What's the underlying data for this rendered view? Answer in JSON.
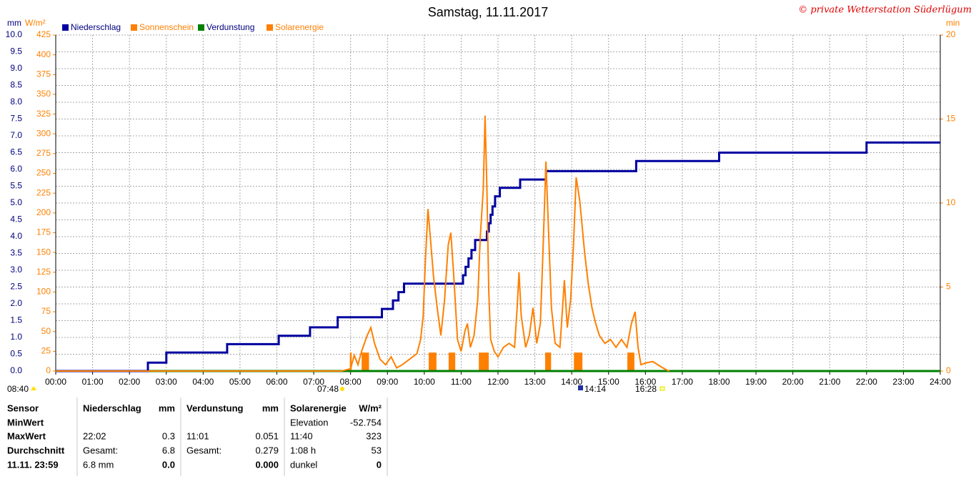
{
  "chart_data": {
    "type": "line",
    "title": "Samstag, 11.11.2017",
    "copyright": "© private Wetterstation Süderlügum",
    "y_label": "mm",
    "y2_label": "W/m²",
    "y3_label": "min",
    "xlim": [
      0,
      24
    ],
    "xticks": [
      {
        "value": 0,
        "label": "00:00"
      },
      {
        "value": 1,
        "label": "01:00"
      },
      {
        "value": 2,
        "label": "02:00"
      },
      {
        "value": 3,
        "label": "03:00"
      },
      {
        "value": 4,
        "label": "04:00"
      },
      {
        "value": 5,
        "label": "05:00"
      },
      {
        "value": 6,
        "label": "06:00"
      },
      {
        "value": 7,
        "label": "07:00"
      },
      {
        "value": 8,
        "label": "08:00"
      },
      {
        "value": 9,
        "label": "09:00"
      },
      {
        "value": 10,
        "label": "10:00"
      },
      {
        "value": 11,
        "label": "11:00"
      },
      {
        "value": 12,
        "label": "12:00"
      },
      {
        "value": 13,
        "label": "13:00"
      },
      {
        "value": 14,
        "label": "14:00"
      },
      {
        "value": 15,
        "label": "15:00"
      },
      {
        "value": 16,
        "label": "16:00"
      },
      {
        "value": 17,
        "label": "17:00"
      },
      {
        "value": 18,
        "label": "18:00"
      },
      {
        "value": 19,
        "label": "19:00"
      },
      {
        "value": 20,
        "label": "20:00"
      },
      {
        "value": 21,
        "label": "21:00"
      },
      {
        "value": 22,
        "label": "22:00"
      },
      {
        "value": 23,
        "label": "23:00"
      },
      {
        "value": 24,
        "label": "24:00"
      }
    ],
    "ylim": [
      0,
      10
    ],
    "y_color": "#000080",
    "yticks": [
      {
        "value": 0,
        "label": "0.0"
      },
      0.5,
      {
        "value": 1,
        "label": "1.0"
      },
      1.5,
      {
        "value": 2,
        "label": "2.0"
      },
      2.5,
      {
        "value": 3,
        "label": "3.0"
      },
      3.5,
      {
        "value": 4,
        "label": "4.0"
      },
      4.5,
      {
        "value": 5,
        "label": "5.0"
      },
      5.5,
      {
        "value": 6,
        "label": "6.0"
      },
      6.5,
      {
        "value": 7,
        "label": "7.0"
      },
      7.5,
      {
        "value": 8,
        "label": "8.0"
      },
      8.5,
      {
        "value": 9,
        "label": "9.0"
      },
      9.5,
      {
        "value": 10,
        "label": "10.0"
      }
    ],
    "y2lim": [
      0,
      425
    ],
    "y2_color": "#ff8000",
    "y2ticks": [
      0,
      25,
      50,
      75,
      100,
      125,
      150,
      175,
      200,
      225,
      250,
      275,
      300,
      325,
      350,
      375,
      400,
      425
    ],
    "y3lim": [
      0,
      20
    ],
    "y3_color": "#ff8000",
    "y3ticks": [
      0,
      5,
      10,
      15,
      20
    ],
    "grid": true,
    "series": [
      {
        "name": "Niederschlag",
        "type": "line",
        "axis": "y",
        "color": "#0000a0",
        "x": [
          0,
          2.5,
          2.5,
          3,
          3,
          4.65,
          4.65,
          6.05,
          6.05,
          6.9,
          6.9,
          7.65,
          7.65,
          8.85,
          8.85,
          9.15,
          9.15,
          9.3,
          9.3,
          9.45,
          9.45,
          11.05,
          11.05,
          11.12,
          11.12,
          11.2,
          11.2,
          11.28,
          11.28,
          11.38,
          11.38,
          11.7,
          11.7,
          11.75,
          11.75,
          11.8,
          11.8,
          11.85,
          11.85,
          11.92,
          11.92,
          12.05,
          12.05,
          12.6,
          12.6,
          13.3,
          13.3,
          15.75,
          15.75,
          18,
          18,
          22,
          22,
          24
        ],
        "values": [
          0,
          0,
          0.25,
          0.25,
          0.55,
          0.55,
          0.8,
          0.8,
          1.05,
          1.05,
          1.3,
          1.3,
          1.6,
          1.6,
          1.85,
          1.85,
          2.1,
          2.1,
          2.35,
          2.35,
          2.6,
          2.6,
          2.85,
          2.85,
          3.1,
          3.1,
          3.35,
          3.35,
          3.6,
          3.6,
          3.9,
          3.9,
          4.15,
          4.15,
          4.4,
          4.4,
          4.65,
          4.65,
          4.9,
          4.9,
          5.2,
          5.2,
          5.45,
          5.45,
          5.7,
          5.7,
          5.95,
          5.95,
          6.25,
          6.25,
          6.5,
          6.5,
          6.8,
          6.8
        ]
      },
      {
        "name": "Sonnenschein",
        "type": "bar",
        "axis": "y3",
        "color": "#ff8000",
        "x": [
          7.98,
          8.3,
          10.12,
          10.66,
          11.48,
          13.28,
          14.06,
          15.51
        ],
        "x_end": [
          8.03,
          8.5,
          10.33,
          10.84,
          11.75,
          13.44,
          14.29,
          15.7
        ],
        "values": [
          1.1,
          1.1,
          1.1,
          1.1,
          1.1,
          1.1,
          1.1,
          1.1
        ]
      },
      {
        "name": "Verdunstung",
        "type": "line",
        "axis": "y",
        "color": "#008000",
        "x": [
          0,
          24
        ],
        "values": [
          0,
          0
        ]
      },
      {
        "name": "Solarenergie",
        "type": "line",
        "axis": "y2",
        "color": "#ff8000",
        "x": [
          0,
          7.75,
          8.0,
          8.1,
          8.2,
          8.3,
          8.45,
          8.55,
          8.65,
          8.8,
          8.95,
          9.1,
          9.25,
          9.4,
          9.6,
          9.8,
          9.9,
          9.97,
          10.03,
          10.1,
          10.18,
          10.25,
          10.35,
          10.45,
          10.55,
          10.65,
          10.72,
          10.8,
          10.9,
          11.0,
          11.1,
          11.17,
          11.25,
          11.35,
          11.45,
          11.52,
          11.6,
          11.65,
          11.7,
          11.75,
          11.8,
          11.9,
          12.0,
          12.15,
          12.3,
          12.45,
          12.52,
          12.57,
          12.63,
          12.75,
          12.85,
          12.95,
          13.05,
          13.15,
          13.22,
          13.3,
          13.36,
          13.45,
          13.55,
          13.68,
          13.8,
          13.88,
          13.97,
          14.05,
          14.12,
          14.22,
          14.35,
          14.45,
          14.55,
          14.65,
          14.75,
          14.9,
          15.05,
          15.2,
          15.35,
          15.5,
          15.62,
          15.72,
          15.8,
          15.88,
          16.0,
          16.2,
          16.4,
          16.55,
          16.65
        ],
        "values": [
          0,
          0,
          3,
          20,
          8,
          25,
          45,
          55,
          35,
          15,
          8,
          18,
          4,
          8,
          15,
          22,
          40,
          70,
          140,
          205,
          160,
          120,
          80,
          45,
          90,
          160,
          175,
          120,
          40,
          25,
          50,
          60,
          30,
          45,
          90,
          170,
          230,
          323,
          230,
          100,
          40,
          25,
          18,
          30,
          35,
          30,
          80,
          125,
          70,
          30,
          45,
          80,
          35,
          60,
          150,
          265,
          190,
          80,
          35,
          30,
          115,
          55,
          90,
          160,
          245,
          215,
          150,
          110,
          80,
          60,
          45,
          35,
          40,
          30,
          40,
          30,
          60,
          75,
          30,
          8,
          10,
          12,
          6,
          2,
          0
        ]
      }
    ],
    "annotations": [
      "08:40",
      "07:48",
      "14:14",
      "16:28"
    ]
  },
  "table": {
    "columns": [
      {
        "name": "Sensor"
      },
      {
        "name": "Niederschlag",
        "unit": "mm"
      },
      {
        "name": "Verdunstung",
        "unit": "mm"
      },
      {
        "name": "Solarenergie",
        "unit": "W/m²"
      }
    ],
    "rows": [
      {
        "label": "MinWert",
        "solar": {
          "left": "Elevation",
          "right": -52.754
        }
      },
      {
        "label": "MaxWert",
        "rain": {
          "left": "22:02",
          "right": 0.3
        },
        "evap": {
          "left": "11:01",
          "right": 0.051
        },
        "solar": {
          "left": "11:40",
          "right": 323
        }
      },
      {
        "label": "Durchschnitt",
        "rain": {
          "left": "Gesamt:",
          "right": 6.8
        },
        "evap": {
          "left": "Gesamt:",
          "right": 0.279
        },
        "solar": {
          "left": "1:08 h",
          "right": 53
        }
      },
      {
        "label": "11.11. 23:59",
        "rain": {
          "left": "6.8 mm",
          "right": "0.0"
        },
        "evap": {
          "right": "0.000"
        },
        "solar": {
          "left": "dunkel",
          "right": 0
        }
      }
    ]
  }
}
